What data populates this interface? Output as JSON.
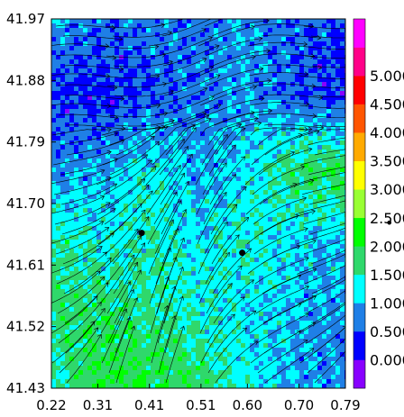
{
  "chart_data": {
    "type": "heatmap",
    "title": "",
    "xlabel": "",
    "ylabel": "",
    "xlim": [
      0.22,
      0.79
    ],
    "ylim": [
      41.43,
      41.97
    ],
    "x_ticks": [
      "0.22",
      "0.31",
      "0.41",
      "0.51",
      "0.60",
      "0.70",
      "0.79"
    ],
    "y_ticks": [
      "41.43",
      "41.52",
      "41.61",
      "41.70",
      "41.79",
      "41.88",
      "41.97"
    ],
    "overlay": "streamlines with arrowheads (flow field)",
    "markers": [
      {
        "x": 0.395,
        "y": 41.657
      },
      {
        "x": 0.59,
        "y": 41.628
      }
    ],
    "colorbar": {
      "min": 0.0,
      "max": 5.5,
      "step": 0.5,
      "labels": [
        "0.000",
        "0.500",
        "1.000",
        "1.500",
        "2.000",
        "2.500",
        "3.000",
        "3.500",
        "4.000",
        "4.500",
        "5.000"
      ],
      "colors": [
        "#8800ff",
        "#0000ff",
        "#1f7fe6",
        "#00ffff",
        "#2fd86b",
        "#00ff00",
        "#99ff33",
        "#ffff00",
        "#ffaa00",
        "#ff5500",
        "#ff0000",
        "#ff0088",
        "#ff00ff"
      ]
    },
    "field": {
      "rows": 6,
      "cols": 7,
      "values": [
        [
          0.9,
          0.6,
          0.8,
          0.7,
          0.9,
          0.6,
          0.5
        ],
        [
          0.4,
          0.3,
          0.5,
          0.7,
          0.9,
          0.5,
          0.3
        ],
        [
          0.8,
          0.9,
          1.3,
          0.9,
          1.2,
          1.8,
          1.9
        ],
        [
          1.6,
          1.3,
          1.5,
          1.2,
          1.4,
          1.1,
          1.0
        ],
        [
          1.7,
          1.8,
          1.6,
          1.4,
          1.2,
          1.0,
          0.8
        ],
        [
          1.3,
          2.1,
          2.0,
          1.8,
          1.3,
          0.9,
          0.7
        ]
      ]
    }
  },
  "colorbar_extra_marker": "•"
}
